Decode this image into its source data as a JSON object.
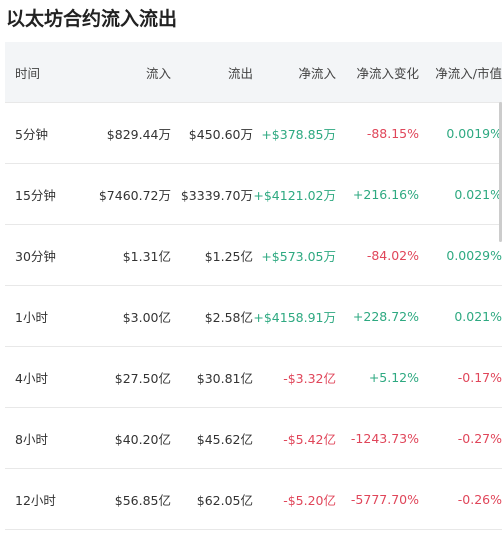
{
  "header": {
    "title": "以太坊合约流入流出"
  },
  "table": {
    "columns": [
      "时间",
      "流入",
      "流出",
      "净流入",
      "净流入变化",
      "净流入/市值"
    ],
    "rows": [
      [
        "5分钟",
        "$829.44万",
        "$450.60万",
        "+$378.85万",
        "-88.15%",
        "0.0019%"
      ],
      [
        "15分钟",
        "$7460.72万",
        "$3339.70万",
        "+$4121.02万",
        "+216.16%",
        "0.021%"
      ],
      [
        "30分钟",
        "$1.31亿",
        "$1.25亿",
        "+$573.05万",
        "-84.02%",
        "0.0029%"
      ],
      [
        "1小时",
        "$3.00亿",
        "$2.58亿",
        "+$4158.91万",
        "+228.72%",
        "0.021%"
      ],
      [
        "4小时",
        "$27.50亿",
        "$30.81亿",
        "-$3.32亿",
        "+5.12%",
        "-0.17%"
      ],
      [
        "8小时",
        "$40.20亿",
        "$45.62亿",
        "-$5.42亿",
        "-1243.73%",
        "-0.27%"
      ],
      [
        "12小时",
        "$56.85亿",
        "$62.05亿",
        "-$5.20亿",
        "-5777.70%",
        "-0.26%"
      ]
    ]
  }
}
